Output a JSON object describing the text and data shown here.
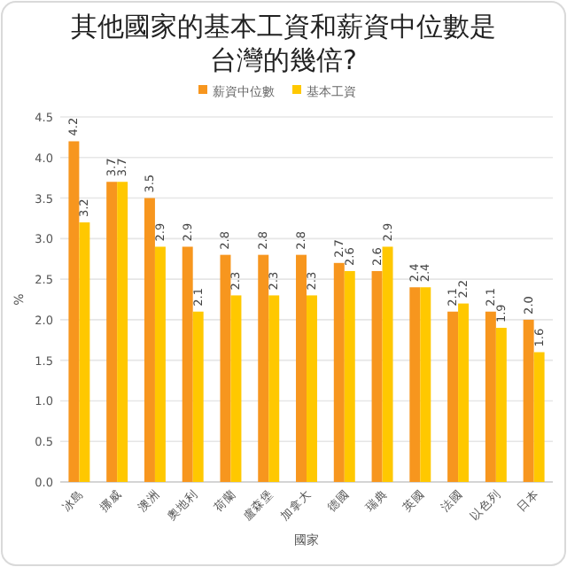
{
  "chart_data": {
    "type": "bar",
    "title": "其他國家的基本工資和薪資中位數是台灣的幾倍?",
    "xlabel": "國家",
    "ylabel": "%",
    "categories": [
      "冰島",
      "挪威",
      "澳洲",
      "奧地利",
      "荷蘭",
      "盧森堡",
      "加拿大",
      "德國",
      "瑞典",
      "英國",
      "法國",
      "以色列",
      "日本"
    ],
    "series": [
      {
        "name": "薪資中位數",
        "color": "#f7961e",
        "values": [
          4.2,
          3.7,
          3.5,
          2.9,
          2.8,
          2.8,
          2.8,
          2.7,
          2.6,
          2.4,
          2.1,
          2.1,
          2.0
        ],
        "value_labels": [
          "4.2",
          "3.7",
          "3.5",
          "2.9",
          "2.8",
          "2.8",
          "2.8",
          "2.7",
          "2.6",
          "2.4",
          "2.1",
          "2.1",
          "2.0"
        ]
      },
      {
        "name": "基本工資",
        "color": "#ffc800",
        "values": [
          3.2,
          3.7,
          2.9,
          2.1,
          2.3,
          2.3,
          2.3,
          2.6,
          2.9,
          2.4,
          2.2,
          1.9,
          1.6
        ],
        "value_labels": [
          "3.2",
          "3.7",
          "2.9",
          "2.1",
          "2.3",
          "2.3",
          "2.3",
          "2.6",
          "2.9",
          "2.4",
          "2.2",
          "1.9",
          "1.6"
        ]
      }
    ],
    "ylim": [
      0,
      4.5
    ],
    "yticks": [
      {
        "value": 0,
        "label": "0.0"
      },
      {
        "value": 0.5,
        "label": "0.5"
      },
      {
        "value": 1,
        "label": "1.0"
      },
      {
        "value": 1.5,
        "label": "1.5"
      },
      {
        "value": 2,
        "label": "2.0"
      },
      {
        "value": 2.5,
        "label": "2.5"
      },
      {
        "value": 3,
        "label": "3.0"
      },
      {
        "value": 3.5,
        "label": "3.5"
      },
      {
        "value": 4,
        "label": "4.0"
      },
      {
        "value": 4.5,
        "label": "4.5"
      }
    ],
    "grid": "y",
    "legend": "top"
  }
}
